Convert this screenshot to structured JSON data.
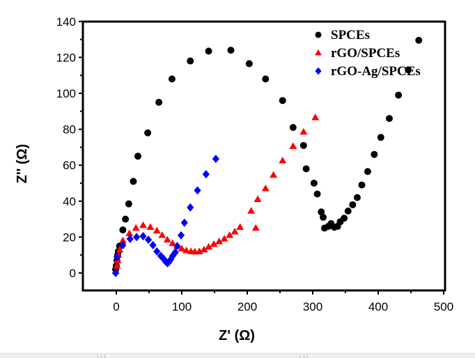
{
  "chart_data": {
    "type": "scatter",
    "title": "",
    "xlabel": "Z' (Ω)",
    "ylabel": "Z'' (Ω)",
    "xlim": [
      -50,
      500
    ],
    "ylim": [
      -10,
      140
    ],
    "xticks": [
      0,
      100,
      200,
      300,
      400,
      500
    ],
    "yticks": [
      0,
      20,
      40,
      60,
      80,
      100,
      120,
      140
    ],
    "grid": false,
    "legend_position": "top-right",
    "series": [
      {
        "name": "SPCEs",
        "marker": "circle",
        "color": "#000000",
        "points": [
          [
            -1,
            2
          ],
          [
            0,
            4
          ],
          [
            1,
            7
          ],
          [
            2,
            10
          ],
          [
            3,
            12
          ],
          [
            5,
            15
          ],
          [
            10,
            24
          ],
          [
            14,
            30
          ],
          [
            19,
            38.5
          ],
          [
            26,
            51
          ],
          [
            33,
            65
          ],
          [
            48,
            78
          ],
          [
            65,
            95
          ],
          [
            85,
            108
          ],
          [
            113,
            118
          ],
          [
            141,
            123.5
          ],
          [
            175,
            124
          ],
          [
            203,
            116.5
          ],
          [
            228,
            108
          ],
          [
            254,
            96
          ],
          [
            270,
            81
          ],
          [
            286,
            71
          ],
          [
            290,
            58
          ],
          [
            302,
            50
          ],
          [
            307,
            44
          ],
          [
            313,
            34
          ],
          [
            316,
            31
          ],
          [
            318,
            25
          ],
          [
            324,
            26
          ],
          [
            328,
            27.5
          ],
          [
            333,
            25.5
          ],
          [
            338,
            26
          ],
          [
            342,
            28.5
          ],
          [
            348,
            30.5
          ],
          [
            354,
            34.5
          ],
          [
            361,
            38
          ],
          [
            368,
            42
          ],
          [
            375,
            49
          ],
          [
            384,
            56.5
          ],
          [
            394,
            66
          ],
          [
            404,
            75.5
          ],
          [
            417,
            86
          ],
          [
            431,
            99
          ],
          [
            446,
            113
          ],
          [
            462,
            129.5
          ]
        ]
      },
      {
        "name": "rGO/SPCEs",
        "marker": "triangle",
        "color": "#ff0000",
        "points": [
          [
            -1,
            1
          ],
          [
            1,
            4
          ],
          [
            2,
            7
          ],
          [
            3,
            10
          ],
          [
            5,
            13
          ],
          [
            10,
            18
          ],
          [
            20,
            22
          ],
          [
            30,
            25
          ],
          [
            41,
            26.5
          ],
          [
            52,
            25.5
          ],
          [
            62,
            23.5
          ],
          [
            70,
            21
          ],
          [
            78,
            18.5
          ],
          [
            86,
            16.5
          ],
          [
            93,
            15
          ],
          [
            100,
            13.5
          ],
          [
            107,
            12.5
          ],
          [
            114,
            12
          ],
          [
            120,
            11.8
          ],
          [
            127,
            12
          ],
          [
            134,
            13
          ],
          [
            141,
            14.5
          ],
          [
            149,
            16
          ],
          [
            157,
            17.5
          ],
          [
            165,
            19
          ],
          [
            173,
            21
          ],
          [
            181,
            23
          ],
          [
            189,
            25.5
          ],
          [
            206,
            34.5
          ],
          [
            213,
            25
          ],
          [
            216,
            41
          ],
          [
            228,
            47
          ],
          [
            240,
            54.5
          ],
          [
            254,
            62.5
          ],
          [
            270,
            70.5
          ],
          [
            286,
            78.5
          ],
          [
            304,
            86.5
          ]
        ]
      },
      {
        "name": "rGO-Ag/SPCEs",
        "marker": "diamond",
        "color": "#0000ff",
        "points": [
          [
            -1,
            0
          ],
          [
            1,
            9
          ],
          [
            10,
            15.5
          ],
          [
            21,
            19
          ],
          [
            31,
            20
          ],
          [
            41,
            20.5
          ],
          [
            49,
            18.5
          ],
          [
            56,
            15.5
          ],
          [
            62,
            12
          ],
          [
            68,
            9.5
          ],
          [
            72,
            8
          ],
          [
            75,
            6.5
          ],
          [
            78,
            5.5
          ],
          [
            80,
            6
          ],
          [
            83,
            7.5
          ],
          [
            86,
            9.5
          ],
          [
            90,
            11.5
          ],
          [
            93,
            15
          ],
          [
            99,
            21
          ],
          [
            104,
            28
          ],
          [
            113,
            36.5
          ],
          [
            124,
            46
          ],
          [
            137,
            55
          ],
          [
            152,
            63.5
          ]
        ]
      }
    ]
  }
}
